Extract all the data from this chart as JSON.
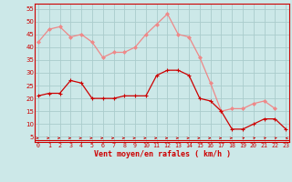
{
  "x": [
    0,
    1,
    2,
    3,
    4,
    5,
    6,
    7,
    8,
    9,
    10,
    11,
    12,
    13,
    14,
    15,
    16,
    17,
    18,
    19,
    20,
    21,
    22,
    23
  ],
  "vent_moyen": [
    21,
    22,
    22,
    27,
    26,
    20,
    20,
    20,
    21,
    21,
    21,
    29,
    31,
    31,
    29,
    20,
    19,
    15,
    8,
    8,
    10,
    12,
    12,
    8
  ],
  "en_rafales": [
    42,
    47,
    48,
    44,
    45,
    42,
    36,
    38,
    38,
    40,
    45,
    49,
    53,
    45,
    44,
    36,
    26,
    15,
    16,
    16,
    18,
    19,
    16,
    null
  ],
  "bg_color": "#cce8e8",
  "grid_color": "#aacccc",
  "line_moyen_color": "#cc0000",
  "line_rafales_color": "#ee8888",
  "xlabel": "Vent moyen/en rafales ( km/h )",
  "ylabel_ticks": [
    5,
    10,
    15,
    20,
    25,
    30,
    35,
    40,
    45,
    50,
    55
  ],
  "xlim": [
    -0.3,
    23.3
  ],
  "ylim": [
    3,
    57
  ],
  "arrow_angles_deg": [
    0,
    0,
    0,
    0,
    0,
    0,
    0,
    0,
    0,
    0,
    0,
    0,
    0,
    0,
    0,
    0,
    0,
    0,
    0,
    45,
    45,
    45,
    45,
    180
  ]
}
